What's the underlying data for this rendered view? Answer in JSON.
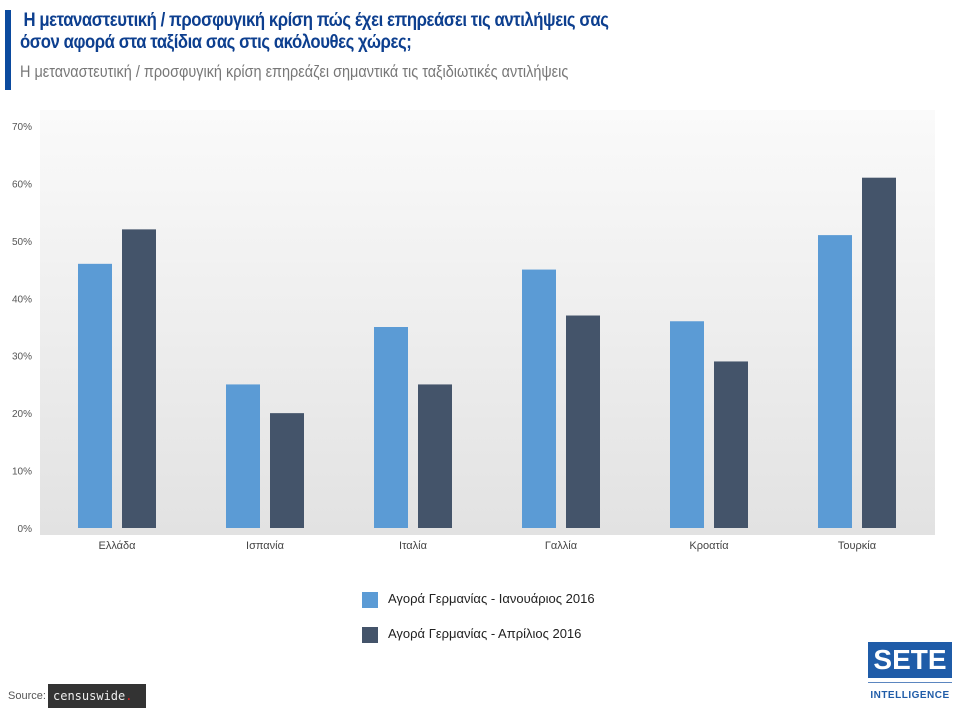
{
  "header": {
    "title_line1": "Η μεταναστευτική / προσφυγική κρίση πώς έχει επηρεάσει τις αντιλήψεις σας",
    "title_line2": "όσον αφορά στα ταξίδια σας στις ακόλουθες χώρες;",
    "subtitle": "Η μεταναστευτική / προσφυγική κρίση επηρεάζει σημαντικά τις ταξιδιωτικές αντιλήψεις"
  },
  "chart_data": {
    "type": "bar",
    "categories": [
      "Ελλάδα",
      "Ισπανία",
      "Ιταλία",
      "Γαλλία",
      "Κροατία",
      "Τουρκία"
    ],
    "series": [
      {
        "name": "Αγορά Γερμανίας - Ιανουάριος 2016",
        "color": "#5b9bd5",
        "values": [
          46,
          25,
          35,
          45,
          36,
          51
        ]
      },
      {
        "name": "Αγορά Γερμανίας -  Απρίλιος 2016",
        "color": "#44546a",
        "values": [
          52,
          20,
          25,
          37,
          29,
          61
        ]
      }
    ],
    "ylim": [
      0,
      70
    ],
    "yticks": [
      "0%",
      "10%",
      "20%",
      "30%",
      "40%",
      "50%",
      "60%",
      "70%"
    ],
    "grid": false,
    "legend": "bottom"
  },
  "footer": {
    "source_label": "Source:",
    "source_logo": "censuswide",
    "brand": "SETE",
    "brand_sub": "INTELLIGENCE"
  }
}
